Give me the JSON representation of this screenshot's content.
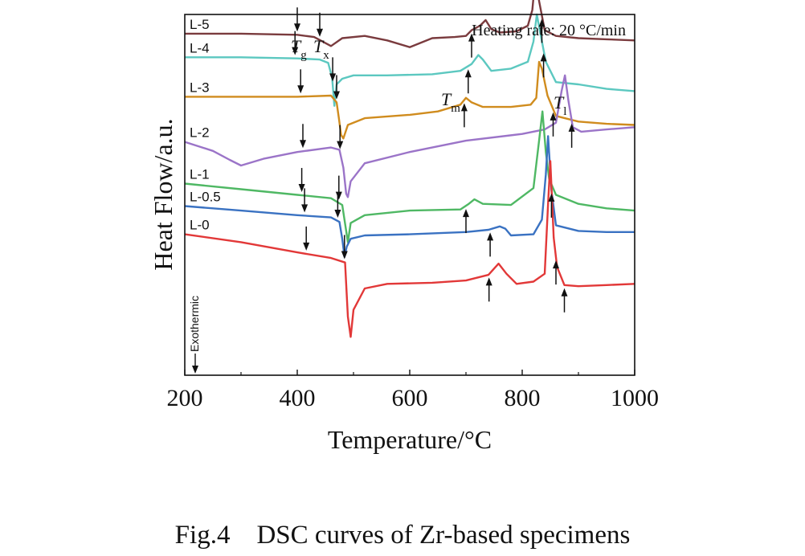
{
  "caption": "Fig.4    DSC curves of Zr-based specimens",
  "chart_data": {
    "type": "line",
    "title": "",
    "xlabel": "Temperature/°C",
    "ylabel": "Heat Flow/a.u.",
    "xlim": [
      200,
      1000
    ],
    "ylim": [
      0,
      16
    ],
    "xticks": [
      200,
      400,
      600,
      800,
      1000
    ],
    "yticks_shown": false,
    "grid": false,
    "legend": "none",
    "annotations": {
      "heating_rate": "Heating rate: 20 °C/min",
      "exothermic": "Exothermic",
      "tg": {
        "base": "T",
        "sub": "g"
      },
      "tx": {
        "base": "T",
        "sub": "x"
      },
      "tm": {
        "base": "T",
        "sub": "m"
      },
      "tl": {
        "base": "T",
        "sub": "l"
      }
    },
    "series": [
      {
        "name": "L-5",
        "color": "#7a3b3e",
        "x": [
          200,
          300,
          400,
          430,
          445,
          460,
          480,
          520,
          560,
          600,
          640,
          680,
          700,
          710,
          725,
          735,
          745,
          760,
          790,
          810,
          818,
          824,
          830,
          840,
          860,
          900,
          950,
          1000
        ],
        "y": [
          15.15,
          15.15,
          15.1,
          15.0,
          14.8,
          14.6,
          14.95,
          15.05,
          14.85,
          14.55,
          14.95,
          15.0,
          15.05,
          15.3,
          15.5,
          15.75,
          15.35,
          15.2,
          15.25,
          15.5,
          16.2,
          17.8,
          16.6,
          15.3,
          15.05,
          14.95,
          14.9,
          14.85
        ]
      },
      {
        "name": "L-4",
        "color": "#5cc8c0",
        "x": [
          200,
          300,
          400,
          440,
          455,
          462,
          466,
          470,
          480,
          500,
          560,
          640,
          690,
          710,
          722,
          730,
          745,
          780,
          810,
          820,
          826,
          832,
          842,
          860,
          900,
          950,
          1000
        ],
        "y": [
          14.1,
          14.1,
          14.05,
          14.0,
          13.85,
          13.2,
          11.95,
          12.9,
          13.15,
          13.3,
          13.3,
          13.35,
          13.5,
          13.8,
          14.2,
          14.0,
          13.5,
          13.6,
          13.9,
          14.8,
          16.0,
          15.2,
          13.9,
          13.0,
          12.9,
          12.7,
          12.6
        ]
      },
      {
        "name": "L-3",
        "color": "#d08c1e",
        "x": [
          200,
          300,
          400,
          460,
          470,
          474,
          478,
          482,
          490,
          520,
          600,
          650,
          690,
          700,
          710,
          730,
          780,
          815,
          825,
          830,
          835,
          845,
          860,
          900,
          950,
          1000
        ],
        "y": [
          12.35,
          12.35,
          12.35,
          12.4,
          12.1,
          11.4,
          10.65,
          10.5,
          11.1,
          11.4,
          11.55,
          11.7,
          12.0,
          12.3,
          12.1,
          11.9,
          11.9,
          12.0,
          12.3,
          13.9,
          13.6,
          12.4,
          11.5,
          11.25,
          11.15,
          11.1
        ]
      },
      {
        "name": "L-2",
        "color": "#9b74c8",
        "x": [
          200,
          250,
          280,
          300,
          340,
          400,
          460,
          475,
          482,
          487,
          490,
          495,
          520,
          600,
          700,
          800,
          840,
          860,
          870,
          876,
          882,
          890,
          905,
          950,
          1000
        ],
        "y": [
          10.35,
          9.95,
          9.55,
          9.3,
          9.6,
          9.9,
          10.1,
          10.0,
          9.2,
          8.05,
          7.9,
          8.6,
          9.4,
          9.9,
          10.4,
          10.7,
          10.9,
          11.2,
          12.6,
          13.3,
          12.2,
          11.0,
          10.8,
          10.9,
          11.0
        ]
      },
      {
        "name": "L-1",
        "color": "#4fb864",
        "x": [
          200,
          300,
          400,
          460,
          480,
          487,
          490,
          495,
          520,
          600,
          690,
          705,
          715,
          730,
          780,
          820,
          830,
          836,
          842,
          848,
          860,
          900,
          950,
          1000
        ],
        "y": [
          8.5,
          8.25,
          8.0,
          7.85,
          7.55,
          6.4,
          5.9,
          6.75,
          7.1,
          7.3,
          7.35,
          7.6,
          7.8,
          7.6,
          7.55,
          8.3,
          10.4,
          11.7,
          9.9,
          8.7,
          8.0,
          7.6,
          7.4,
          7.3
        ]
      },
      {
        "name": "L-0.5",
        "color": "#3a72c2",
        "x": [
          200,
          300,
          400,
          460,
          475,
          480,
          484,
          488,
          495,
          520,
          600,
          700,
          740,
          760,
          770,
          780,
          820,
          835,
          842,
          846,
          852,
          860,
          900,
          950,
          1000
        ],
        "y": [
          7.5,
          7.3,
          7.1,
          7.0,
          6.8,
          6.05,
          5.25,
          5.7,
          6.05,
          6.2,
          6.25,
          6.35,
          6.45,
          6.6,
          6.5,
          6.2,
          6.25,
          6.9,
          8.9,
          10.6,
          8.2,
          6.65,
          6.4,
          6.35,
          6.35
        ]
      },
      {
        "name": "L-0",
        "color": "#e23838",
        "x": [
          200,
          300,
          400,
          460,
          485,
          490,
          495,
          500,
          520,
          560,
          640,
          700,
          740,
          758,
          772,
          790,
          820,
          840,
          846,
          850,
          856,
          862,
          875,
          900,
          950,
          1000
        ],
        "y": [
          6.25,
          5.9,
          5.45,
          5.2,
          5.0,
          2.6,
          1.7,
          2.9,
          3.85,
          4.05,
          4.1,
          4.2,
          4.45,
          4.95,
          4.5,
          4.05,
          4.15,
          4.5,
          7.6,
          9.5,
          6.1,
          4.8,
          4.0,
          3.95,
          4.0,
          4.05
        ]
      }
    ],
    "markers": [
      {
        "series": "L-5",
        "x": 400,
        "dir": "down"
      },
      {
        "series": "L-5",
        "x": 440,
        "dir": "down"
      },
      {
        "series": "L-5",
        "x": 710,
        "dir": "up"
      },
      {
        "series": "L-5",
        "x": 835,
        "dir": "up"
      },
      {
        "series": "L-4",
        "x": 396,
        "dir": "down"
      },
      {
        "series": "L-4",
        "x": 463,
        "dir": "down"
      },
      {
        "series": "L-4",
        "x": 704,
        "dir": "up"
      },
      {
        "series": "L-4",
        "x": 838,
        "dir": "up"
      },
      {
        "series": "L-3",
        "x": 406,
        "dir": "down"
      },
      {
        "series": "L-3",
        "x": 470,
        "dir": "down"
      },
      {
        "series": "L-3",
        "x": 697,
        "dir": "up"
      },
      {
        "series": "L-3",
        "x": 855,
        "dir": "up"
      },
      {
        "series": "L-2",
        "x": 410,
        "dir": "down"
      },
      {
        "series": "L-2",
        "x": 476,
        "dir": "down"
      },
      {
        "series": "L-2",
        "x": 888,
        "dir": "up"
      },
      {
        "series": "L-1",
        "x": 408,
        "dir": "down"
      },
      {
        "series": "L-1",
        "x": 474,
        "dir": "down"
      },
      {
        "series": "L-1",
        "x": 700,
        "dir": "up"
      },
      {
        "series": "L-0.5",
        "x": 413,
        "dir": "down"
      },
      {
        "series": "L-0.5",
        "x": 472,
        "dir": "down"
      },
      {
        "series": "L-0.5",
        "x": 743,
        "dir": "up"
      },
      {
        "series": "L-0.5",
        "x": 852,
        "dir": "up"
      },
      {
        "series": "L-0",
        "x": 416,
        "dir": "down"
      },
      {
        "series": "L-0",
        "x": 484,
        "dir": "down"
      },
      {
        "series": "L-0",
        "x": 741,
        "dir": "up"
      },
      {
        "series": "L-0",
        "x": 860,
        "dir": "up"
      },
      {
        "series": "L-0",
        "x": 875,
        "dir": "up"
      }
    ]
  }
}
